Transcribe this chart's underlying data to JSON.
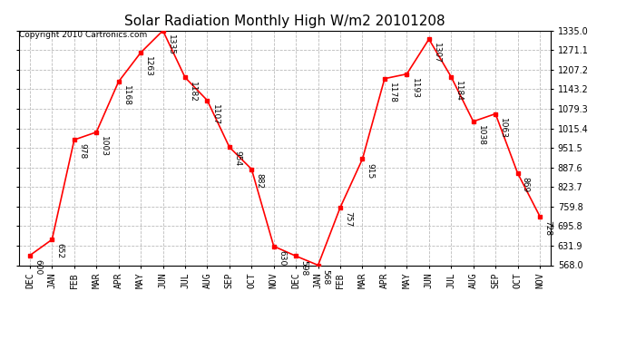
{
  "title": "Solar Radiation Monthly High W/m2 20101208",
  "copyright": "Copyright 2010 Cartronics.com",
  "x_labels": [
    "DEC",
    "JAN",
    "FEB",
    "MAR",
    "APR",
    "MAY",
    "JUN",
    "JUL",
    "AUG",
    "SEP",
    "OCT",
    "NOV",
    "DEC",
    "JAN",
    "FEB",
    "MAR",
    "APR",
    "MAY",
    "JUN",
    "JUL",
    "AUG",
    "SEP",
    "OCT",
    "NOV"
  ],
  "y_values": [
    600,
    652,
    978,
    1003,
    1168,
    1263,
    1335,
    1182,
    1107,
    954,
    882,
    630,
    598,
    568,
    757,
    915,
    1178,
    1193,
    1307,
    1184,
    1038,
    1063,
    869,
    728
  ],
  "y_min": 568.0,
  "y_max": 1335.0,
  "y_ticks": [
    568.0,
    631.9,
    695.8,
    759.8,
    823.7,
    887.6,
    951.5,
    1015.4,
    1079.3,
    1143.2,
    1207.2,
    1271.1,
    1335.0
  ],
  "line_color": "red",
  "marker_color": "red",
  "bg_color": "white",
  "grid_color": "#bbbbbb",
  "title_fontsize": 11,
  "label_fontsize": 6.5,
  "tick_fontsize": 7,
  "copyright_fontsize": 6.5
}
